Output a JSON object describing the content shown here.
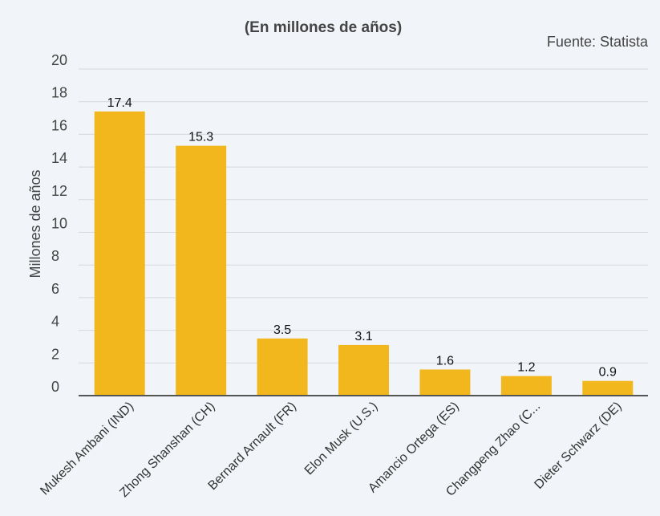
{
  "chart_data": {
    "type": "bar",
    "subtitle": "(En millones de años)",
    "source": "Fuente: Statista",
    "ylabel": "Millones de años",
    "xlabel": "",
    "ylim": [
      0,
      20
    ],
    "yticks": [
      0,
      2,
      4,
      6,
      8,
      10,
      12,
      14,
      16,
      18,
      20
    ],
    "grid": true,
    "categories": [
      "Mukesh Ambani (IND)",
      "Zhong Shanshan (CH)",
      "Bernard Arnault (FR)",
      "Elon Musk (U.S.)",
      "Amancio Ortega (ES)",
      "Changpeng Zhao (C...",
      "Dieter Schwarz (DE)"
    ],
    "values": [
      17.4,
      15.3,
      3.5,
      3.1,
      1.6,
      1.2,
      0.9
    ],
    "value_labels": [
      "17.4",
      "15.3",
      "3.5",
      "3.1",
      "1.6",
      "1.2",
      "0.9"
    ],
    "bar_color": "#f2b71d"
  }
}
